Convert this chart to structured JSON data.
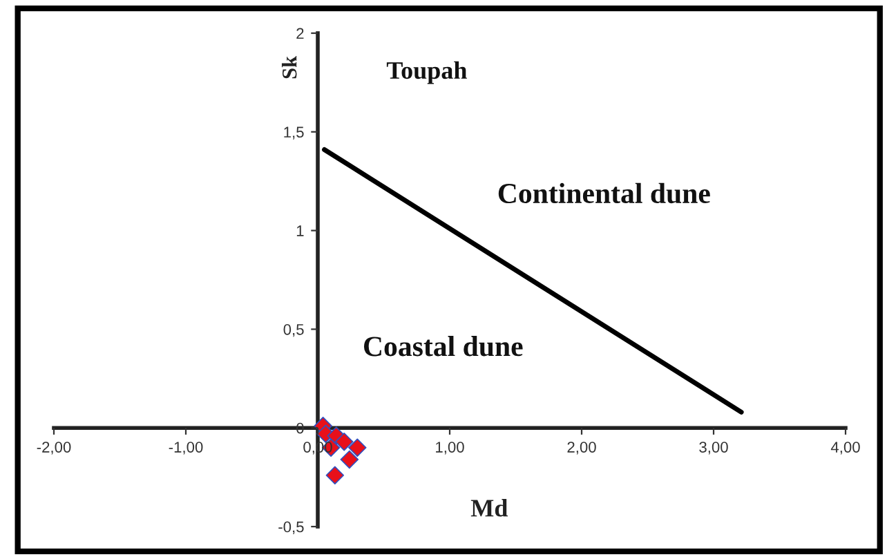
{
  "chart_data": {
    "type": "scatter",
    "xlabel": "Md",
    "ylabel": "Sk",
    "annotations": [
      "Toupah",
      "Continental dune",
      "Coastal dune"
    ],
    "xlim": [
      -2,
      4
    ],
    "ylim": [
      -0.5,
      2
    ],
    "xticks": [
      {
        "value": -2,
        "label": "-2,00"
      },
      {
        "value": -1,
        "label": "-1,00"
      },
      {
        "value": 0,
        "label": "0,00"
      },
      {
        "value": 1,
        "label": "1,00"
      },
      {
        "value": 2,
        "label": "2,00"
      },
      {
        "value": 3,
        "label": "3,00"
      },
      {
        "value": 4,
        "label": "4,00"
      }
    ],
    "yticks": [
      {
        "value": -0.5,
        "label": "-0,5"
      },
      0,
      {
        "value": 0.5,
        "label": "0,5"
      },
      1,
      {
        "value": 1.5,
        "label": "1,5"
      },
      2
    ],
    "grid": false,
    "legend": false,
    "series": [
      {
        "type": "line",
        "color": "#000000",
        "x": [
          0.05,
          3.21
        ],
        "values": [
          1.41,
          0.08
        ],
        "marker": "none",
        "line_style": "solid"
      },
      {
        "color": "#e8101a",
        "x": [
          0.04,
          0.06,
          0.14,
          0.2,
          0.1,
          0.3,
          0.24,
          0.13
        ],
        "values": [
          0.01,
          -0.03,
          -0.04,
          -0.07,
          -0.1,
          -0.1,
          -0.16,
          -0.24
        ],
        "marker": "diamond"
      }
    ]
  }
}
